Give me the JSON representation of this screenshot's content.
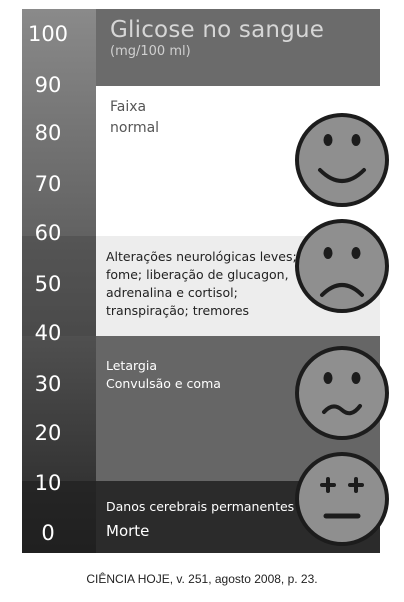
{
  "header": {
    "title": "Glicose no sangue",
    "unit": "(mg/100 ml)"
  },
  "axis": {
    "ticks": [
      "100",
      "90",
      "80",
      "70",
      "60",
      "50",
      "40",
      "30",
      "20",
      "10",
      "0"
    ]
  },
  "bands": [
    {
      "id": "normal",
      "lines": [
        "Faixa",
        "normal"
      ],
      "face": "happy"
    },
    {
      "id": "neuro",
      "lines": [
        "Alterações neurológicas leves;",
        "fome; liberação de glucagon,",
        "adrenalina e cortisol;",
        "transpiração; tremores"
      ],
      "face": "sad"
    },
    {
      "id": "letargia",
      "lines": [
        "Letargia",
        "Convulsão e coma"
      ],
      "face": "wavy"
    },
    {
      "id": "morte",
      "lines": [
        "Danos cerebrais permanentes",
        "Morte"
      ],
      "face": "dead"
    }
  ],
  "caption": "CIÊNCIA HOJE, v. 251, agosto 2008, p. 23.",
  "colors": {
    "header": "#6a6a6a",
    "axis_top": "#888888",
    "axis_bottom": "#2a2a2a",
    "face": "#8f8f8f",
    "face_stroke": "#1c1c1c"
  }
}
